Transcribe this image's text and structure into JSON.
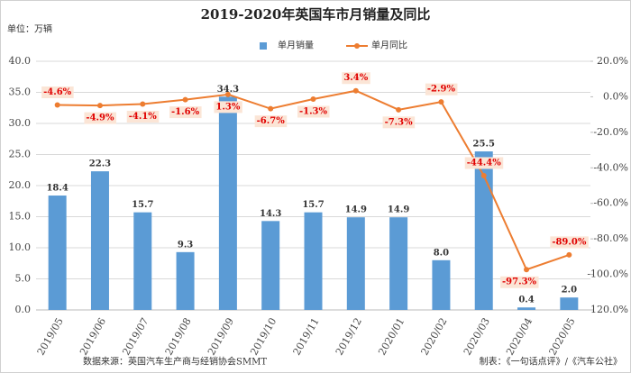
{
  "chart_data": {
    "type": "bar-line",
    "title": "2019-2020年英国车市月销量及同比",
    "unit_label": "单位：万辆",
    "source": "数据来源：英国汽车生产商与经销协会SMMT",
    "credit": "制表：《一句话点评》/《汽车公社》",
    "categories": [
      "2019/05",
      "2019/06",
      "2019/07",
      "2019/08",
      "2019/09",
      "2019/10",
      "2019/11",
      "2019/12",
      "2020/01",
      "2020/02",
      "2020/03",
      "2020/04",
      "2020/05"
    ],
    "series": [
      {
        "name": "单月销量",
        "color": "#5b9bd5",
        "kind": "bar",
        "values": [
          18.4,
          22.3,
          15.7,
          9.3,
          34.3,
          14.3,
          15.7,
          14.9,
          14.9,
          8.0,
          25.5,
          0.4,
          2.0
        ],
        "value_labels": [
          "18.4",
          "22.3",
          "15.7",
          "9.3",
          "34.3",
          "14.3",
          "15.7",
          "14.9",
          "14.9",
          "8.0",
          "25.5",
          "0.4",
          "2.0"
        ]
      },
      {
        "name": "单月同比",
        "color": "#ed7d31",
        "kind": "line",
        "axis": "y2",
        "values": [
          -4.6,
          -4.9,
          -4.1,
          -1.6,
          1.3,
          -6.7,
          -1.3,
          3.4,
          -7.3,
          -2.9,
          -44.4,
          -97.3,
          -89.0
        ],
        "value_labels": [
          "-4.6%",
          "-4.9%",
          "-4.1%",
          "-1.6%",
          "1.3%",
          "-6.7%",
          "-1.3%",
          "3.4%",
          "-7.3%",
          "-2.9%",
          "-44.4%",
          "-97.3%",
          "-89.0%"
        ]
      }
    ],
    "ylim": [
      0,
      40
    ],
    "yticks": [
      {
        "value": 0,
        "label": "0.0"
      },
      {
        "value": 5,
        "label": "5.0"
      },
      {
        "value": 10,
        "label": "10.0"
      },
      {
        "value": 15,
        "label": "15.0"
      },
      {
        "value": 20,
        "label": "20.0"
      },
      {
        "value": 25,
        "label": "25.0"
      },
      {
        "value": 30,
        "label": "30.0"
      },
      {
        "value": 35,
        "label": "35.0"
      },
      {
        "value": 40,
        "label": "40.0"
      }
    ],
    "y2lim": [
      -120,
      20
    ],
    "y2ticks": [
      {
        "value": -120,
        "label": "-120.0%"
      },
      {
        "value": -100,
        "label": "-100.0%"
      },
      {
        "value": -80,
        "label": "-80.0%"
      },
      {
        "value": -60,
        "label": "-60.0%"
      },
      {
        "value": -40,
        "label": "-40.0%"
      },
      {
        "value": -20,
        "label": "-20.0%"
      },
      {
        "value": 0,
        "label": "0.0%"
      },
      {
        "value": 20,
        "label": "20.0%"
      }
    ],
    "grid": true
  }
}
